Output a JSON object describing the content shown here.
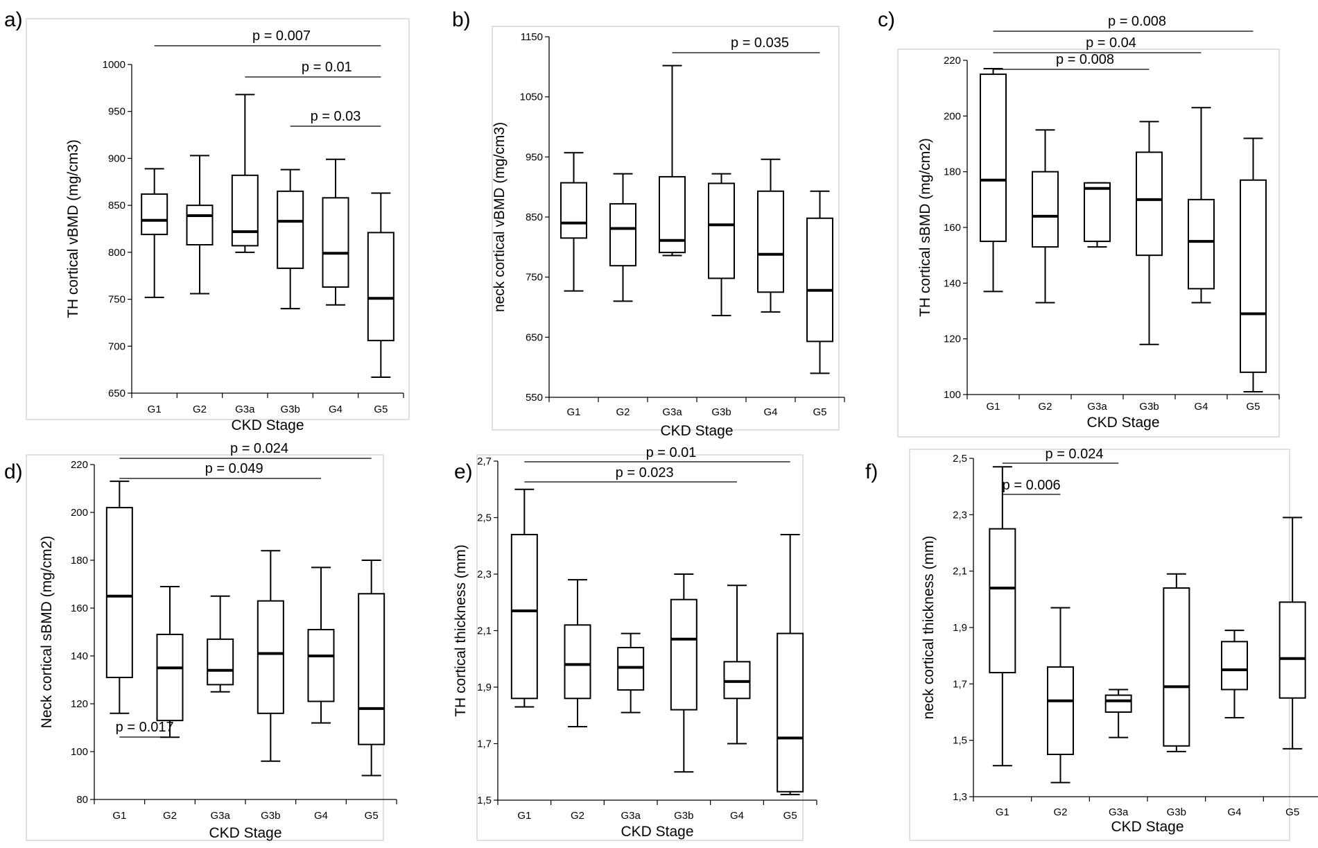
{
  "chart_data": [
    {
      "panel": "a)",
      "type": "boxplot",
      "ylabel": "TH cortical vBMD (mg/cm3)",
      "xlabel": "CKD Stage",
      "categories": [
        "G1",
        "G2",
        "G3a",
        "G3b",
        "G4",
        "G5"
      ],
      "ylim": [
        650,
        1000
      ],
      "yticks": [
        650,
        700,
        750,
        800,
        850,
        900,
        950,
        1000
      ],
      "ytick_labels": [
        "650",
        "700",
        "750",
        "800",
        "850",
        "900",
        "950",
        "1000"
      ],
      "boxes": [
        {
          "min": 752,
          "q1": 819,
          "median": 834,
          "q3": 862,
          "max": 889
        },
        {
          "min": 756,
          "q1": 808,
          "median": 839,
          "q3": 850,
          "max": 903
        },
        {
          "min": 800,
          "q1": 807,
          "median": 822,
          "q3": 882,
          "max": 968
        },
        {
          "min": 740,
          "q1": 783,
          "median": 833,
          "q3": 865,
          "max": 888
        },
        {
          "min": 744,
          "q1": 763,
          "median": 799,
          "q3": 858,
          "max": 899
        },
        {
          "min": 667,
          "q1": 706,
          "median": 751,
          "q3": 821,
          "max": 863
        }
      ],
      "significance": [
        {
          "label": "p = 0.007",
          "from": "G1",
          "to": "G5"
        },
        {
          "label": "p = 0.01",
          "from": "G3a",
          "to": "G5"
        },
        {
          "label": "p = 0.03",
          "from": "G3b",
          "to": "G5"
        }
      ]
    },
    {
      "panel": "b)",
      "type": "boxplot",
      "ylabel": "neck cortical vBMD (mg/cm3)",
      "xlabel": "CKD Stage",
      "categories": [
        "G1",
        "G2",
        "G3a",
        "G3b",
        "G4",
        "G5"
      ],
      "ylim": [
        550,
        1150
      ],
      "yticks": [
        550,
        650,
        750,
        850,
        950,
        1050,
        1150
      ],
      "ytick_labels": [
        "550",
        "650",
        "750",
        "850",
        "950",
        "1050",
        "1150"
      ],
      "boxes": [
        {
          "min": 727,
          "q1": 815,
          "median": 840,
          "q3": 907,
          "max": 957
        },
        {
          "min": 710,
          "q1": 769,
          "median": 831,
          "q3": 872,
          "max": 922
        },
        {
          "min": 786,
          "q1": 791,
          "median": 811,
          "q3": 917,
          "max": 1102
        },
        {
          "min": 686,
          "q1": 748,
          "median": 837,
          "q3": 906,
          "max": 922
        },
        {
          "min": 692,
          "q1": 725,
          "median": 788,
          "q3": 893,
          "max": 946
        },
        {
          "min": 590,
          "q1": 643,
          "median": 728,
          "q3": 848,
          "max": 893
        }
      ],
      "significance": [
        {
          "label": "p = 0.035",
          "from": "G3a",
          "to": "G5"
        }
      ]
    },
    {
      "panel": "c)",
      "type": "boxplot",
      "ylabel": "TH cortical sBMD (mg/cm2)",
      "xlabel": "CKD Stage",
      "categories": [
        "G1",
        "G2",
        "G3a",
        "G3b",
        "G4",
        "G5"
      ],
      "ylim": [
        100,
        220
      ],
      "yticks": [
        100,
        120,
        140,
        160,
        180,
        200,
        220
      ],
      "ytick_labels": [
        "100",
        "120",
        "140",
        "160",
        "180",
        "200",
        "220"
      ],
      "boxes": [
        {
          "min": 137,
          "q1": 155,
          "median": 177,
          "q3": 215,
          "max": 217
        },
        {
          "min": 133,
          "q1": 153,
          "median": 164,
          "q3": 180,
          "max": 195
        },
        {
          "min": 153,
          "q1": 155,
          "median": 174,
          "q3": 176,
          "max": 176
        },
        {
          "min": 118,
          "q1": 150,
          "median": 170,
          "q3": 187,
          "max": 198
        },
        {
          "min": 133,
          "q1": 138,
          "median": 155,
          "q3": 170,
          "max": 203
        },
        {
          "min": 101,
          "q1": 108,
          "median": 129,
          "q3": 177,
          "max": 192
        }
      ],
      "significance": [
        {
          "label": "p = 0.008",
          "from": "G1",
          "to": "G5"
        },
        {
          "label": "p = 0.04",
          "from": "G1",
          "to": "G4"
        },
        {
          "label": "p = 0.008",
          "from": "G1",
          "to": "G3b"
        }
      ]
    },
    {
      "panel": "d)",
      "type": "boxplot",
      "ylabel": "Neck cortical sBMD (mg/cm2)",
      "xlabel": "CKD Stage",
      "categories": [
        "G1",
        "G2",
        "G3a",
        "G3b",
        "G4",
        "G5"
      ],
      "ylim": [
        80,
        220
      ],
      "yticks": [
        80,
        100,
        120,
        140,
        160,
        180,
        200,
        220
      ],
      "ytick_labels": [
        "80",
        "100",
        "120",
        "140",
        "160",
        "180",
        "200",
        "220"
      ],
      "boxes": [
        {
          "min": 116,
          "q1": 131,
          "median": 165,
          "q3": 202,
          "max": 213
        },
        {
          "min": 106,
          "q1": 113,
          "median": 135,
          "q3": 149,
          "max": 169
        },
        {
          "min": 125,
          "q1": 128,
          "median": 134,
          "q3": 147,
          "max": 165
        },
        {
          "min": 96,
          "q1": 116,
          "median": 141,
          "q3": 163,
          "max": 184
        },
        {
          "min": 112,
          "q1": 121,
          "median": 140,
          "q3": 151,
          "max": 177
        },
        {
          "min": 90,
          "q1": 103,
          "median": 118,
          "q3": 166,
          "max": 180
        }
      ],
      "significance": [
        {
          "label": "p = 0.024",
          "from": "G1",
          "to": "G5"
        },
        {
          "label": "p = 0.049",
          "from": "G1",
          "to": "G4"
        },
        {
          "label": "p = 0.017",
          "from": "G1",
          "to": "G2"
        }
      ]
    },
    {
      "panel": "e)",
      "type": "boxplot",
      "ylabel": "TH cortical thickness  (mm)",
      "xlabel": "CKD Stage",
      "categories": [
        "G1",
        "G2",
        "G3a",
        "G3b",
        "G4",
        "G5"
      ],
      "ylim": [
        1.5,
        2.7
      ],
      "yticks": [
        1.5,
        1.7,
        1.9,
        2.1,
        2.3,
        2.5,
        2.7
      ],
      "ytick_labels": [
        "1,5",
        "1,7",
        "1,9",
        "2,1",
        "2,3",
        "2,5",
        "2,7"
      ],
      "boxes": [
        {
          "min": 1.83,
          "q1": 1.86,
          "median": 2.17,
          "q3": 2.44,
          "max": 2.6
        },
        {
          "min": 1.76,
          "q1": 1.86,
          "median": 1.98,
          "q3": 2.12,
          "max": 2.28
        },
        {
          "min": 1.81,
          "q1": 1.89,
          "median": 1.97,
          "q3": 2.04,
          "max": 2.09
        },
        {
          "min": 1.6,
          "q1": 1.82,
          "median": 2.07,
          "q3": 2.21,
          "max": 2.3
        },
        {
          "min": 1.7,
          "q1": 1.86,
          "median": 1.92,
          "q3": 1.99,
          "max": 2.26
        },
        {
          "min": 1.52,
          "q1": 1.53,
          "median": 1.72,
          "q3": 2.09,
          "max": 2.44
        }
      ],
      "significance": [
        {
          "label": "p = 0.01",
          "from": "G1",
          "to": "G5"
        },
        {
          "label": "p = 0.023",
          "from": "G1",
          "to": "G4"
        }
      ]
    },
    {
      "panel": "f)",
      "type": "boxplot",
      "ylabel": "neck cortical thickness (mm)",
      "xlabel": "CKD Stage",
      "categories": [
        "G1",
        "G2",
        "G3a",
        "G3b",
        "G4",
        "G5"
      ],
      "ylim": [
        1.3,
        2.5
      ],
      "yticks": [
        1.3,
        1.5,
        1.7,
        1.9,
        2.1,
        2.3,
        2.5
      ],
      "ytick_labels": [
        "1,3",
        "1,5",
        "1,7",
        "1,9",
        "2,1",
        "2,3",
        "2,5"
      ],
      "boxes": [
        {
          "min": 1.41,
          "q1": 1.74,
          "median": 2.04,
          "q3": 2.25,
          "max": 2.47
        },
        {
          "min": 1.35,
          "q1": 1.45,
          "median": 1.64,
          "q3": 1.76,
          "max": 1.97
        },
        {
          "min": 1.51,
          "q1": 1.6,
          "median": 1.64,
          "q3": 1.66,
          "max": 1.68
        },
        {
          "min": 1.46,
          "q1": 1.48,
          "median": 1.69,
          "q3": 2.04,
          "max": 2.09
        },
        {
          "min": 1.58,
          "q1": 1.68,
          "median": 1.75,
          "q3": 1.85,
          "max": 1.89
        },
        {
          "min": 1.47,
          "q1": 1.65,
          "median": 1.79,
          "q3": 1.99,
          "max": 2.29
        }
      ],
      "significance": [
        {
          "label": "p = 0.024",
          "from": "G1",
          "to": "G3a"
        },
        {
          "label": "p = 0.006",
          "from": "G1",
          "to": "G2"
        }
      ]
    }
  ]
}
